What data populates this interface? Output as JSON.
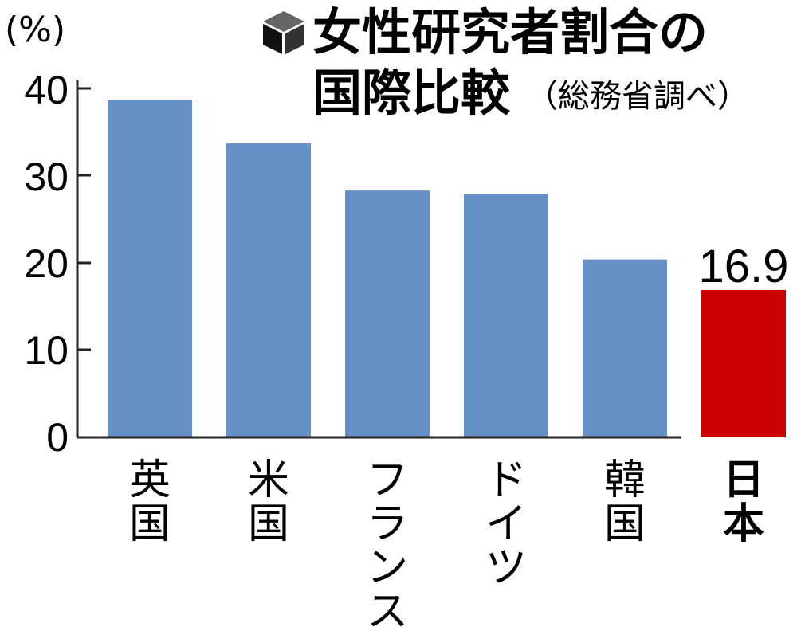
{
  "chart_data": {
    "type": "bar",
    "title": "女性研究者割合の国際比較",
    "title_lines": [
      "女性研究者割合の",
      "国際比較"
    ],
    "source": "（総務省調べ）",
    "unit_label": "(%)",
    "categories": [
      "英国",
      "米国",
      "フランス",
      "ドイツ",
      "韓国",
      "日本"
    ],
    "values": [
      38.7,
      33.7,
      28.3,
      27.9,
      20.4,
      16.9
    ],
    "highlight_index": 5,
    "data_labels": [
      "",
      "",
      "",
      "",
      "",
      "16.9"
    ],
    "ylim": [
      0,
      40
    ],
    "yticks": [
      "0",
      "10",
      "20",
      "30",
      "40"
    ],
    "grid": false,
    "legend": "none",
    "colors": {
      "bar": "#6591c7",
      "highlight": "#cc0000",
      "axis": "#222222"
    }
  }
}
